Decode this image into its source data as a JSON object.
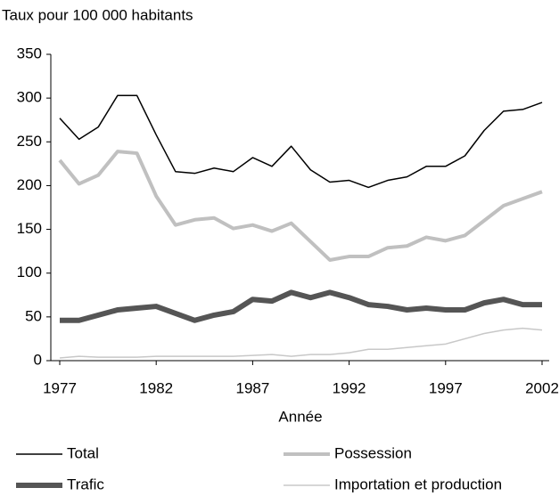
{
  "chart_data": {
    "type": "line",
    "y_label": "Taux pour 100 000 habitants",
    "x_label": "Année",
    "x": [
      1977,
      1978,
      1979,
      1980,
      1981,
      1982,
      1983,
      1984,
      1985,
      1986,
      1987,
      1988,
      1989,
      1990,
      1991,
      1992,
      1993,
      1994,
      1995,
      1996,
      1997,
      1998,
      1999,
      2000,
      2001,
      2002
    ],
    "xlim": [
      1977,
      2002
    ],
    "xticks": [
      1977,
      1982,
      1987,
      1992,
      1997,
      2002
    ],
    "ylim": [
      0,
      350
    ],
    "yticks": [
      0,
      50,
      100,
      150,
      200,
      250,
      300,
      350
    ],
    "grid": false,
    "series": [
      {
        "name": "Total",
        "color": "#000000",
        "width": 1.5,
        "values": [
          277,
          253,
          267,
          303,
          303,
          258,
          216,
          214,
          220,
          216,
          232,
          222,
          245,
          218,
          204,
          206,
          198,
          206,
          210,
          222,
          222,
          234,
          263,
          285,
          287,
          295
        ]
      },
      {
        "name": "Possession",
        "color": "#c0c0c0",
        "width": 4,
        "values": [
          229,
          202,
          212,
          239,
          237,
          188,
          155,
          161,
          163,
          151,
          155,
          148,
          157,
          136,
          115,
          119,
          119,
          129,
          131,
          141,
          137,
          143,
          160,
          177,
          185,
          193
        ]
      },
      {
        "name": "Trafic",
        "color": "#555555",
        "width": 6,
        "values": [
          46,
          46,
          52,
          58,
          60,
          62,
          54,
          46,
          52,
          56,
          70,
          68,
          78,
          72,
          78,
          72,
          64,
          62,
          58,
          60,
          58,
          58,
          66,
          70,
          64,
          64
        ]
      },
      {
        "name": "Importation et production",
        "color": "#c8c8c8",
        "width": 1.5,
        "values": [
          3,
          5,
          4,
          4,
          4,
          5,
          5,
          5,
          5,
          5,
          6,
          7,
          5,
          7,
          7,
          9,
          13,
          13,
          15,
          17,
          19,
          25,
          31,
          35,
          37,
          35
        ]
      }
    ]
  }
}
